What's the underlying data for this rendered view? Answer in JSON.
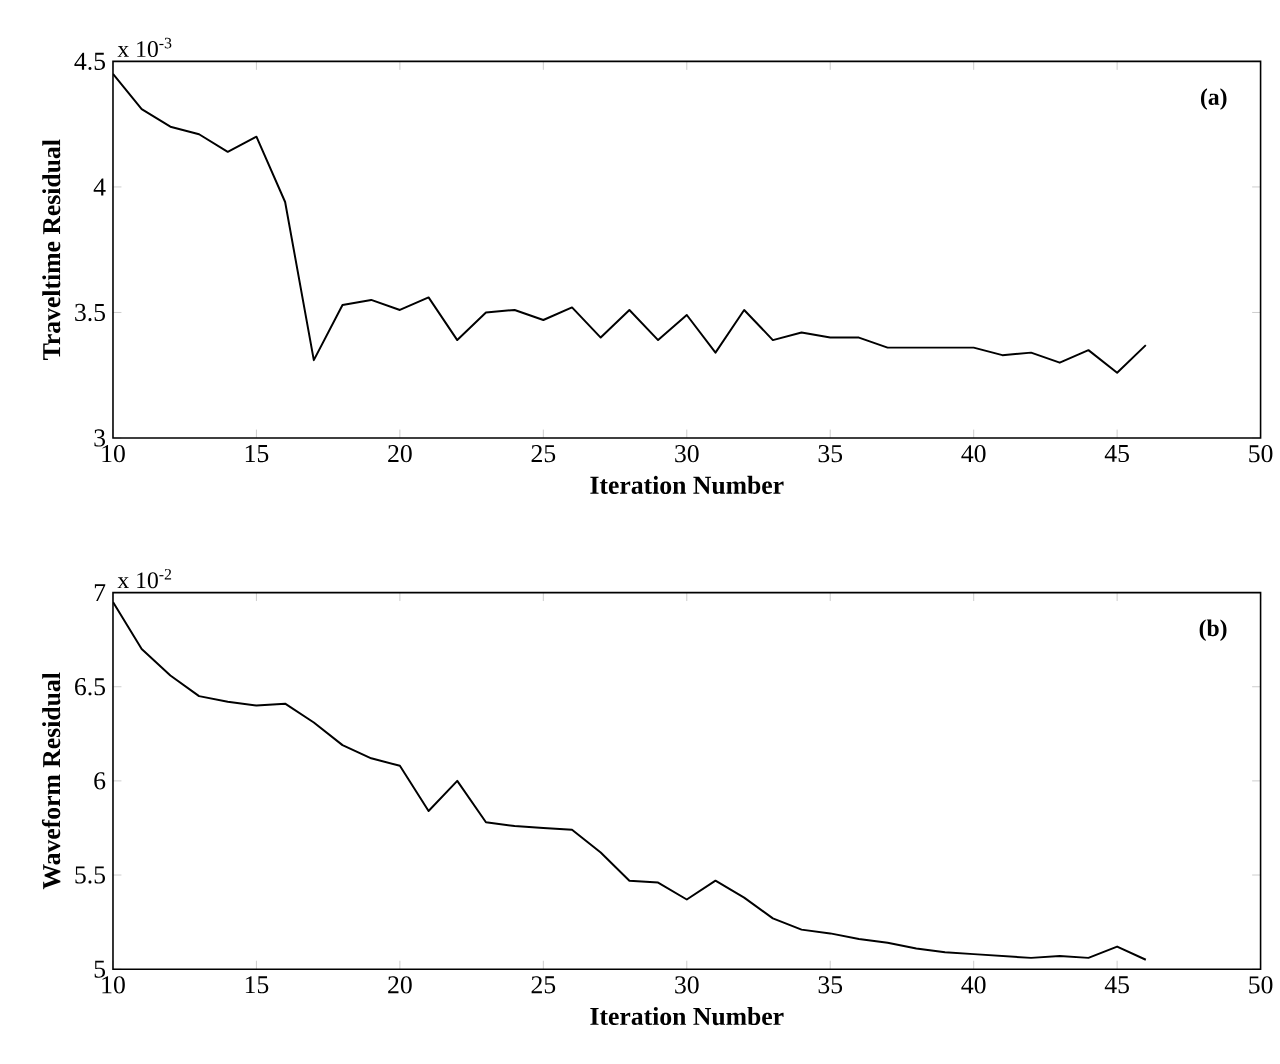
{
  "chart_data": [
    {
      "type": "line",
      "xlabel": "Iteration Number",
      "ylabel": "Traveltime Residual",
      "annotations": [
        "x 10$^{-3}$",
        "(a)"
      ],
      "x": [
        10,
        11,
        12,
        13,
        14,
        15,
        16,
        17,
        18,
        19,
        20,
        21,
        22,
        23,
        24,
        25,
        26,
        27,
        28,
        29,
        30,
        31,
        32,
        33,
        34,
        35,
        36,
        37,
        38,
        39,
        40,
        41,
        42,
        43,
        44,
        45,
        46
      ],
      "series": [
        {
          "color": "#000000",
          "values": [
            4.45,
            4.31,
            4.24,
            4.21,
            4.14,
            4.2,
            3.94,
            3.31,
            3.53,
            3.55,
            3.51,
            3.56,
            3.39,
            3.5,
            3.51,
            3.47,
            3.52,
            3.4,
            3.51,
            3.39,
            3.49,
            3.34,
            3.51,
            3.39,
            3.42,
            3.4,
            3.4,
            3.36,
            3.36,
            3.36,
            3.36,
            3.33,
            3.34,
            3.3,
            3.35,
            3.26,
            3.37
          ]
        }
      ],
      "xlim": [
        10,
        50
      ],
      "ylim": [
        3,
        4.5
      ],
      "xticks": [
        10,
        15,
        20,
        25,
        30,
        35,
        40,
        45,
        50
      ],
      "yticks": [
        3,
        3.5,
        4,
        4.5
      ]
    },
    {
      "type": "line",
      "xlabel": "Iteration Number",
      "ylabel": "Waveform Residual",
      "annotations": [
        "x 10$^{-2}$",
        "(b)"
      ],
      "x": [
        10,
        11,
        12,
        13,
        14,
        15,
        16,
        17,
        18,
        19,
        20,
        21,
        22,
        23,
        24,
        25,
        26,
        27,
        28,
        29,
        30,
        31,
        32,
        33,
        34,
        35,
        36,
        37,
        38,
        39,
        40,
        41,
        42,
        43,
        44,
        45,
        46
      ],
      "series": [
        {
          "color": "#000000",
          "values": [
            6.95,
            6.7,
            6.56,
            6.45,
            6.42,
            6.4,
            6.41,
            6.31,
            6.19,
            6.12,
            6.08,
            5.84,
            6.0,
            5.78,
            5.76,
            5.75,
            5.74,
            5.62,
            5.47,
            5.46,
            5.37,
            5.47,
            5.38,
            5.27,
            5.21,
            5.19,
            5.16,
            5.14,
            5.11,
            5.09,
            5.08,
            5.07,
            5.06,
            5.07,
            5.06,
            5.12,
            5.05
          ]
        }
      ],
      "xlim": [
        10,
        50
      ],
      "ylim": [
        5,
        7
      ],
      "xticks": [
        10,
        15,
        20,
        25,
        30,
        35,
        40,
        45,
        50
      ],
      "yticks": [
        5,
        5.5,
        6,
        6.5,
        7
      ]
    }
  ]
}
